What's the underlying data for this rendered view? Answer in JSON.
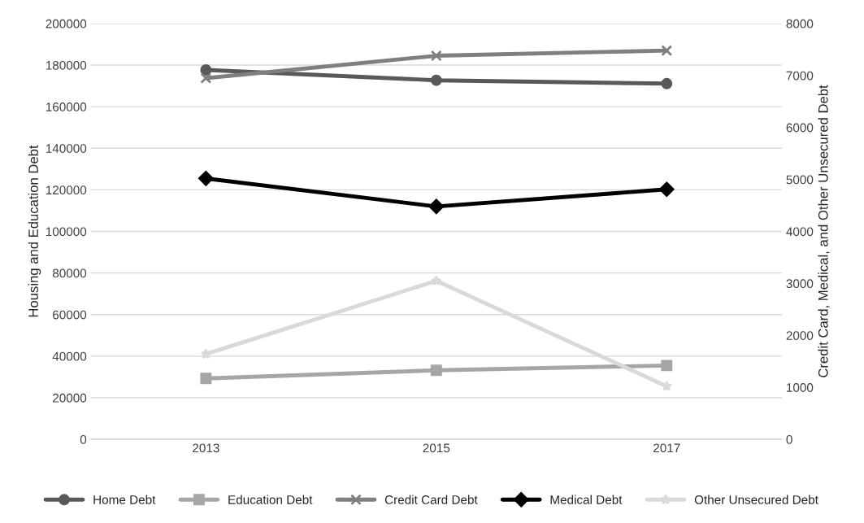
{
  "chart_data": {
    "type": "line",
    "categories": [
      "2013",
      "2015",
      "2017"
    ],
    "ylabel": "Housing and Education Debt",
    "y2label": "Credit Card, Medical, and Other Unsecured Debt",
    "ylim": [
      0,
      200000
    ],
    "yticks": [
      0,
      20000,
      40000,
      60000,
      80000,
      100000,
      120000,
      140000,
      160000,
      180000,
      200000
    ],
    "y2lim": [
      0,
      8000
    ],
    "y2ticks": [
      0,
      1000,
      2000,
      3000,
      4000,
      5000,
      6000,
      7000,
      8000
    ],
    "grid": "y",
    "legend": "bottom",
    "line_style": "solid",
    "series": [
      {
        "name": "Home Debt",
        "color": "#595959",
        "marker": "circle",
        "values": [
          177700,
          172700,
          171100
        ]
      },
      {
        "name": "Education Debt",
        "color": "#a6a6a6",
        "marker": "square",
        "values": [
          29300,
          33200,
          35500
        ]
      },
      {
        "name": "Credit Card Debt",
        "color": "#7f7f7f",
        "marker": "cross",
        "axis": "y2",
        "values": [
          6950,
          7380,
          7480
        ]
      },
      {
        "name": "Medical Debt",
        "color": "#000000",
        "marker": "diamond",
        "axis": "y2",
        "values": [
          5020,
          4480,
          4810
        ]
      },
      {
        "name": "Other Unsecured Debt",
        "color": "#d9d9d9",
        "marker": "star",
        "axis": "y2",
        "values": [
          1640,
          3050,
          1020
        ]
      }
    ]
  }
}
